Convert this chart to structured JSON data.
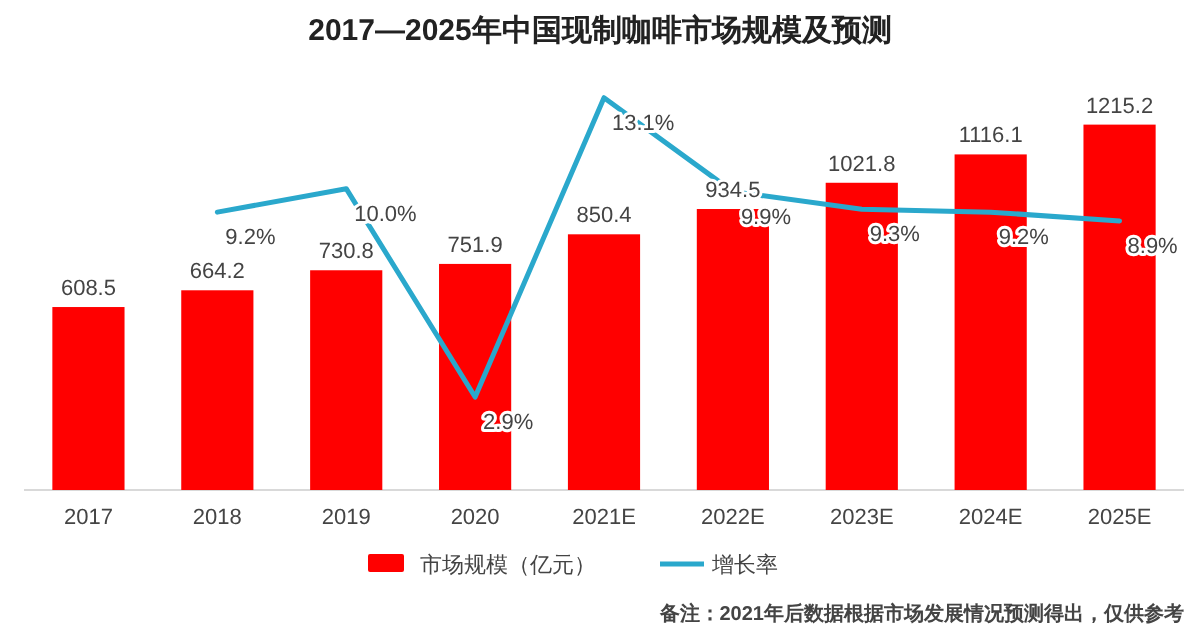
{
  "chart_data": {
    "type": "bar",
    "title": "2017—2025年中国现制咖啡市场规模及预测",
    "categories": [
      "2017",
      "2018",
      "2019",
      "2020",
      "2021E",
      "2022E",
      "2023E",
      "2024E",
      "2025E"
    ],
    "series": [
      {
        "name": "市场规模（亿元）",
        "color": "#ff0000",
        "values": [
          608.5,
          664.2,
          730.8,
          751.9,
          850.4,
          934.5,
          1021.8,
          1116.1,
          1215.2
        ]
      },
      {
        "name": "增长率",
        "type": "line",
        "axis": "y2",
        "color": "#2aa8cc",
        "values": [
          null,
          9.2,
          10.0,
          2.9,
          13.1,
          9.9,
          9.3,
          9.2,
          8.9
        ],
        "value_labels": [
          null,
          "9.2%",
          "10.0%",
          "2.9%",
          "13.1%",
          "9.9%",
          "9.3%",
          "9.2%",
          "8.9%"
        ]
      }
    ],
    "data_labels": true,
    "legend": "bottom",
    "grid": false,
    "marker": "none",
    "annotations": [
      "备注：2021年后数据根据市场发展情况预测得出，仅供参考"
    ]
  }
}
